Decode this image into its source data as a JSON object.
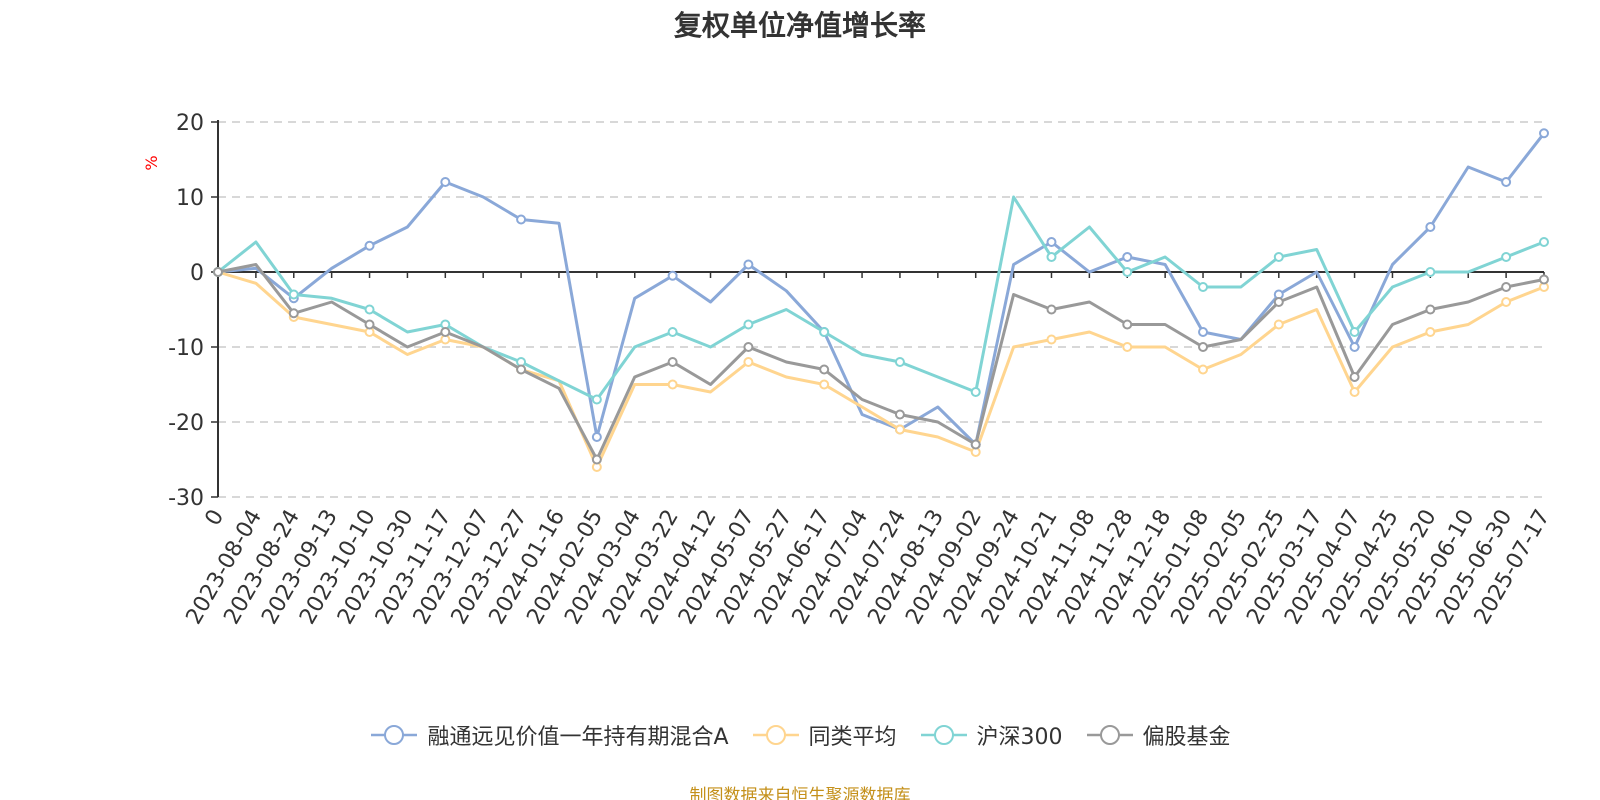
{
  "chart_data": {
    "type": "line",
    "title": "复权单位净值增长率",
    "ylabel": "%",
    "ylim": [
      -30,
      20
    ],
    "yticks": [
      20,
      10,
      0,
      -10,
      -20,
      -30
    ],
    "x": [
      "0",
      "2023-08-04",
      "2023-08-24",
      "2023-09-13",
      "2023-10-10",
      "2023-10-30",
      "2023-11-17",
      "2023-12-07",
      "2023-12-27",
      "2024-01-16",
      "2024-02-05",
      "2024-03-04",
      "2024-03-22",
      "2024-04-12",
      "2024-05-07",
      "2024-05-27",
      "2024-06-17",
      "2024-07-04",
      "2024-07-24",
      "2024-08-13",
      "2024-09-02",
      "2024-09-24",
      "2024-10-21",
      "2024-11-08",
      "2024-11-28",
      "2024-12-18",
      "2025-01-08",
      "2025-02-05",
      "2025-02-25",
      "2025-03-17",
      "2025-04-07",
      "2025-04-25",
      "2025-05-20",
      "2025-06-10",
      "2025-06-30",
      "2025-07-17"
    ],
    "grid": "horizontal dashed",
    "legend_position": "bottom",
    "series": [
      {
        "name": "融通远见价值一年持有期混合A",
        "color": "#8aa8d8",
        "values": [
          0,
          0.5,
          -3.5,
          0.5,
          3.5,
          6,
          12,
          10,
          7,
          6.5,
          -22,
          -3.5,
          -0.5,
          -4,
          1,
          -2.5,
          -8,
          -19,
          -21,
          -18,
          -23,
          1,
          4,
          0,
          2,
          1,
          -8,
          -9,
          -3,
          0,
          -10,
          1,
          6,
          14,
          12,
          18.5
        ]
      },
      {
        "name": "同类平均",
        "color": "#ffd58f",
        "values": [
          0,
          -1.5,
          -6,
          -7,
          -8,
          -11,
          -9,
          -10,
          -13,
          -14.5,
          -26,
          -15,
          -15,
          -16,
          -12,
          -14,
          -15,
          -18,
          -21,
          -22,
          -24,
          -10,
          -9,
          -8,
          -10,
          -10,
          -13,
          -11,
          -7,
          -5,
          -16,
          -10,
          -8,
          -7,
          -4,
          -2
        ]
      },
      {
        "name": "沪深300",
        "color": "#80d4d4",
        "values": [
          0,
          4,
          -3,
          -3.5,
          -5,
          -8,
          -7,
          -10,
          -12,
          -14.5,
          -17,
          -10,
          -8,
          -10,
          -7,
          -5,
          -8,
          -11,
          -12,
          -14,
          -16,
          10,
          2,
          6,
          0,
          2,
          -2,
          -2,
          2,
          3,
          -8,
          -2,
          0,
          0,
          2,
          4
        ]
      },
      {
        "name": "偏股基金",
        "color": "#999999",
        "values": [
          0,
          1,
          -5.5,
          -4,
          -7,
          -10,
          -8,
          -10,
          -13,
          -15.5,
          -25,
          -14,
          -12,
          -15,
          -10,
          -12,
          -13,
          -17,
          -19,
          -20,
          -23,
          -3,
          -5,
          -4,
          -7,
          -7,
          -10,
          -9,
          -4,
          -2,
          -14,
          -7,
          -5,
          -4,
          -2,
          -1
        ]
      }
    ]
  },
  "source_note": "制图数据来自恒生聚源数据库"
}
